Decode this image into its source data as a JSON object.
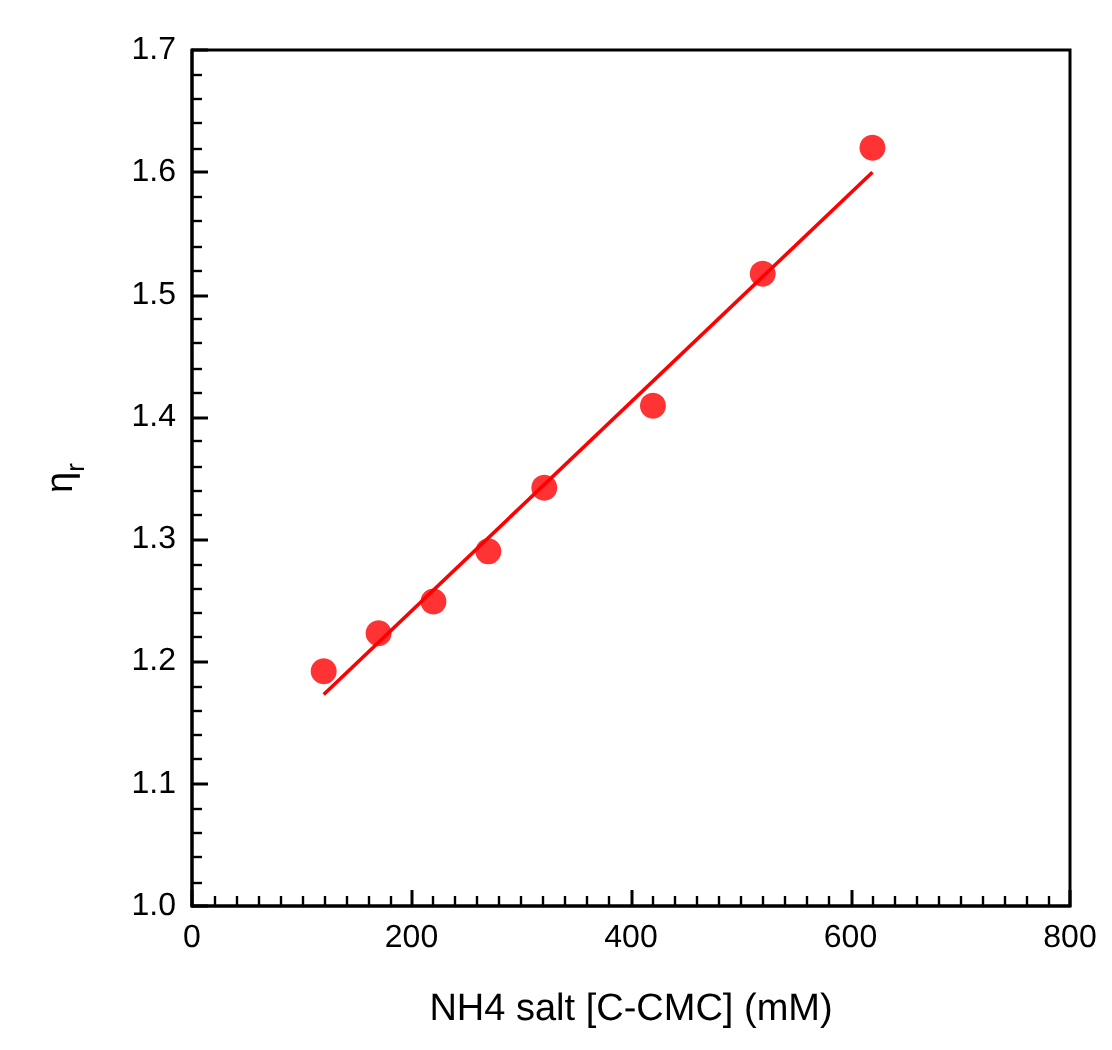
{
  "chart_data": {
    "type": "scatter",
    "xlabel": "NH4 salt [C-CMC] (mM)",
    "ylabel": "η$_{r}$",
    "x": [
      120,
      170,
      220,
      270,
      321,
      420,
      520,
      620
    ],
    "series": [
      {
        "color": "#ff0000",
        "values": [
          1.192,
          1.223,
          1.249,
          1.29,
          1.342,
          1.409,
          1.517,
          1.62
        ],
        "marker": "circle"
      },
      {
        "type": "line",
        "color": "#ff0000",
        "x": [
          120,
          620
        ],
        "values": [
          1.173,
          1.6
        ],
        "marker": "none",
        "line_style": "solid"
      }
    ],
    "xlim": [
      0,
      800
    ],
    "xticks": [
      0,
      200,
      400,
      600,
      800
    ],
    "ylim": [
      1.0,
      1.7
    ],
    "yticks": [
      {
        "value": 1,
        "label": "1.0"
      },
      1.1,
      1.2,
      1.3,
      1.4,
      1.5,
      1.6,
      1.7
    ],
    "grid": false
  }
}
